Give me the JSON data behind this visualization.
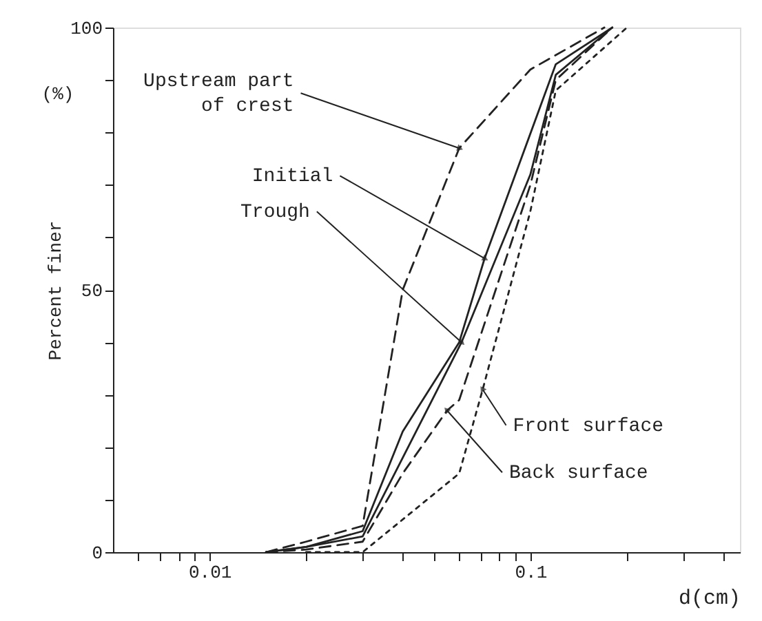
{
  "chart_data": {
    "type": "line",
    "xlabel": "d(cm)",
    "ylabel": "Percent finer",
    "log": "x",
    "xlim": [
      0.005,
      0.45
    ],
    "ylim": [
      0,
      100
    ],
    "xticks": [
      {
        "value": 0.006,
        "label": null
      },
      {
        "value": 0.007,
        "label": null
      },
      {
        "value": 0.008,
        "label": null
      },
      {
        "value": 0.009,
        "label": null
      },
      0.01,
      {
        "value": 0.02,
        "label": null
      },
      {
        "value": 0.03,
        "label": null
      },
      {
        "value": 0.04,
        "label": null
      },
      {
        "value": 0.05,
        "label": null
      },
      {
        "value": 0.06,
        "label": null
      },
      {
        "value": 0.07,
        "label": null
      },
      {
        "value": 0.08,
        "label": null
      },
      {
        "value": 0.09,
        "label": null
      },
      0.1,
      {
        "value": 0.2,
        "label": null
      },
      {
        "value": 0.3,
        "label": null
      },
      {
        "value": 0.4,
        "label": null
      }
    ],
    "yticks": [
      0,
      {
        "value": 10,
        "label": null
      },
      {
        "value": 20,
        "label": null
      },
      {
        "value": 30,
        "label": null
      },
      {
        "value": 40,
        "label": null
      },
      50,
      {
        "value": 60,
        "label": null
      },
      {
        "value": 70,
        "label": null
      },
      {
        "value": 80,
        "label": null
      },
      {
        "value": 90,
        "label": null
      },
      100
    ],
    "grid": false,
    "marker": "none",
    "annotations": [
      "(%)"
    ],
    "series": [
      {
        "name": "Upstream part\nof crest",
        "color": "#222222",
        "line_style": "dashed",
        "x": [
          0.015,
          0.02,
          0.03,
          0.04,
          0.06,
          0.1,
          0.17
        ],
        "values": [
          0,
          2,
          5,
          50,
          77,
          92,
          100
        ]
      },
      {
        "name": "Initial",
        "color": "#222222",
        "line_style": "solid",
        "x": [
          0.015,
          0.02,
          0.03,
          0.04,
          0.06,
          0.072,
          0.12,
          0.18
        ],
        "values": [
          0,
          1,
          4,
          23,
          40,
          56,
          93,
          100
        ]
      },
      {
        "name": "Trough",
        "color": "#222222",
        "line_style": "solid",
        "x": [
          0.015,
          0.02,
          0.03,
          0.04,
          0.061,
          0.1,
          0.12,
          0.18
        ],
        "values": [
          0,
          1,
          3,
          18,
          40,
          72,
          91,
          100
        ]
      },
      {
        "name": "Back surface",
        "color": "#222222",
        "line_style": "dashed",
        "x": [
          0.015,
          0.02,
          0.03,
          0.04,
          0.055,
          0.06,
          0.1,
          0.12,
          0.18
        ],
        "values": [
          0,
          0.5,
          2,
          15,
          27,
          29,
          70,
          90,
          100
        ]
      },
      {
        "name": "Front surface",
        "color": "#222222",
        "line_style": "dotted",
        "x": [
          0.02,
          0.03,
          0.06,
          0.071,
          0.1,
          0.12,
          0.2
        ],
        "values": [
          0,
          0,
          15,
          31,
          65,
          88,
          100
        ]
      }
    ]
  }
}
